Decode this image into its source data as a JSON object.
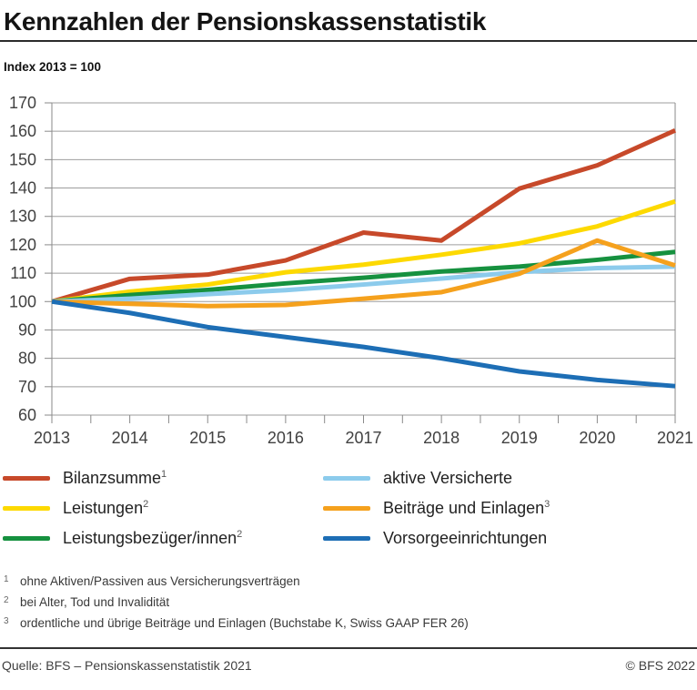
{
  "header": {
    "title": "Kennzahlen der Pensionskassenstatistik"
  },
  "index_label": "Index 2013 = 100",
  "chart_data": {
    "type": "line",
    "title": "Kennzahlen der Pensionskassenstatistik",
    "subtitle": "Index 2013 = 100",
    "x": [
      2013,
      2014,
      2015,
      2016,
      2017,
      2018,
      2019,
      2020,
      2021
    ],
    "xlabel": "",
    "ylabel": "Index 2013 = 100",
    "ylim": [
      60,
      170
    ],
    "ytick_step": 10,
    "x_minor_ticks_per_interval": 2,
    "grid": true,
    "legend_position": "below",
    "axis_colors": {
      "grid": "#9e9e9e",
      "axis": "#8a8a8a",
      "tick_label": "#414141"
    },
    "series": [
      {
        "name": "Bilanzsumme",
        "sup": "1",
        "color": "#c7492a",
        "values": [
          100,
          108,
          109.5,
          114.5,
          124.3,
          121.5,
          139.8,
          148,
          160.3
        ]
      },
      {
        "name": "Leistungen",
        "sup": "2",
        "color": "#fdd900",
        "values": [
          100,
          103.5,
          106,
          110.3,
          113,
          116.5,
          120.5,
          126.5,
          135.3
        ]
      },
      {
        "name": "Leistungsbezüger/innen",
        "sup": "2",
        "color": "#16913f",
        "values": [
          100,
          102.3,
          104.1,
          106.4,
          108.4,
          110.6,
          112.3,
          114.7,
          117.5
        ]
      },
      {
        "name": "aktive Versicherte",
        "sup": "",
        "color": "#8ccbec",
        "values": [
          100,
          101,
          102.6,
          104,
          106,
          108.1,
          110.4,
          111.8,
          112.3
        ]
      },
      {
        "name": "Beiträge und Einlagen",
        "sup": "3",
        "color": "#f5a11d",
        "values": [
          100,
          99.2,
          98.4,
          98.8,
          101,
          103.3,
          109.8,
          121.5,
          112.7
        ]
      },
      {
        "name": "Vorsorgeeinrichtungen",
        "sup": "",
        "color": "#1d6eb5",
        "values": [
          100,
          96,
          91,
          87.5,
          84,
          80,
          75.4,
          72.4,
          70.2
        ]
      }
    ]
  },
  "footnotes": [
    {
      "marker": "1",
      "text": "ohne Aktiven/Passiven aus Versicherungsverträgen"
    },
    {
      "marker": "2",
      "text": "bei Alter, Tod und Invalidität"
    },
    {
      "marker": "3",
      "text": "ordentliche und übrige Beiträge und Einlagen (Buchstabe K, Swiss GAAP FER 26)"
    }
  ],
  "footer": {
    "source": "Quelle: BFS – Pensionskassenstatistik 2021",
    "copyright": "© BFS 2022"
  }
}
